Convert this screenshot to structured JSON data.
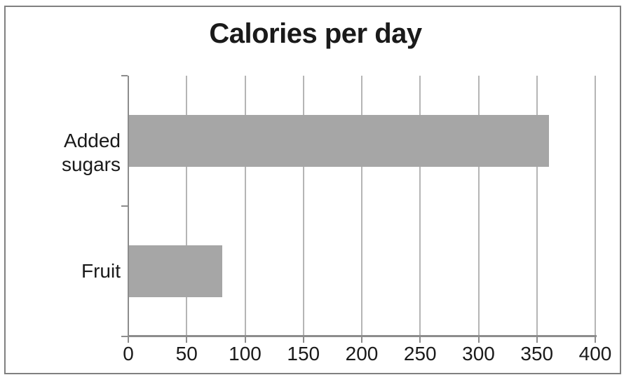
{
  "chart_data": {
    "type": "bar",
    "orientation": "horizontal",
    "title": "Calories per day",
    "categories": [
      "Added sugars",
      "Fruit"
    ],
    "values": [
      360,
      80
    ],
    "xlabel": "",
    "ylabel": "",
    "xlim": [
      0,
      400
    ],
    "xticks": [
      0,
      50,
      100,
      150,
      200,
      250,
      300,
      350,
      400
    ],
    "grid": "vertical",
    "legend": false,
    "bar_color": "#a6a6a6",
    "gridline_color": "#b5b5b5",
    "axis_color": "#8c8c8c",
    "text_color": "#1a1a1a",
    "frame_color": "#808080",
    "background_color": "#ffffff"
  }
}
